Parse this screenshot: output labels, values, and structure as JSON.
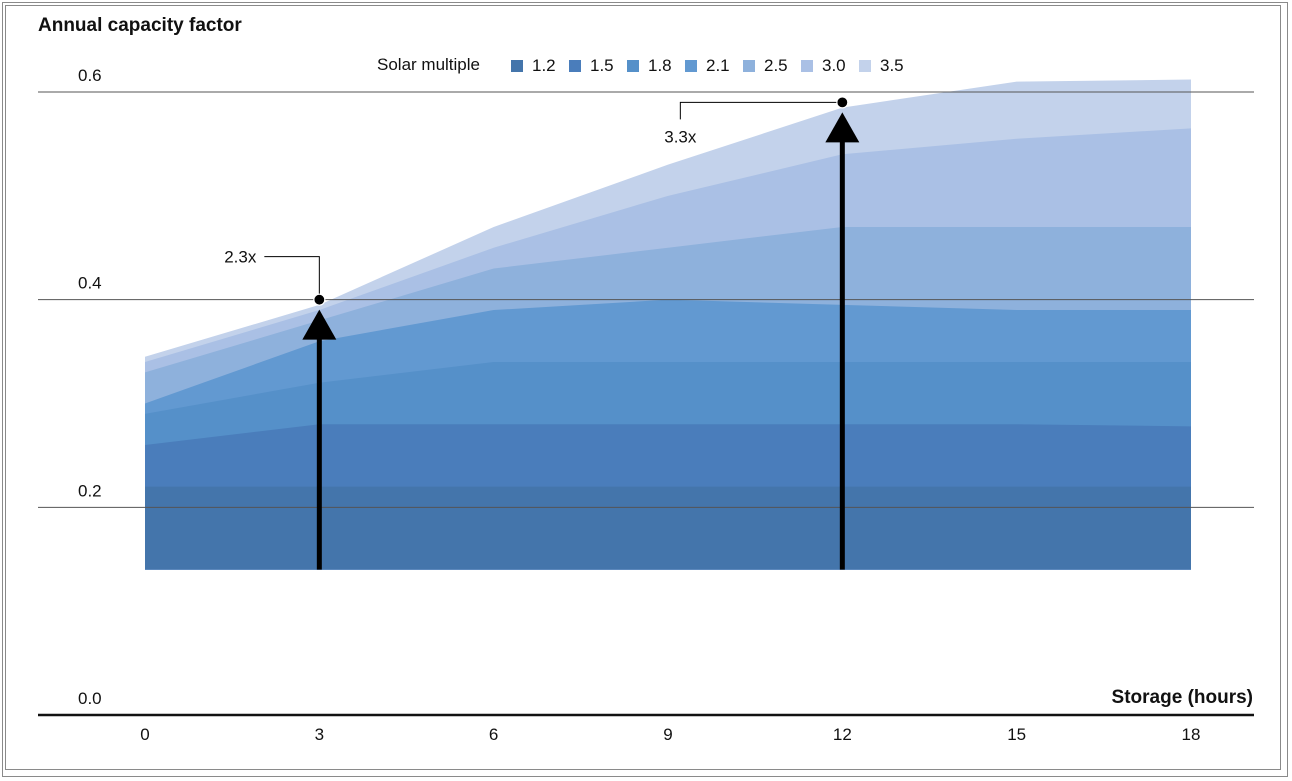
{
  "chart_data": {
    "type": "area",
    "ylabel": "Annual capacity factor",
    "xlabel": "Storage (hours)",
    "legend_title": "Solar multiple",
    "legend_position": "top-center",
    "x": [
      0,
      3,
      6,
      9,
      12,
      15,
      18
    ],
    "x_ticks": [
      "0",
      "3",
      "6",
      "9",
      "12",
      "15",
      "18"
    ],
    "y_ticks": [
      "0.0",
      "0.2",
      "0.4",
      "0.6"
    ],
    "ylim": [
      0,
      0.6
    ],
    "xlim": [
      0,
      18
    ],
    "grid": "horizontal",
    "baseline": 0.14,
    "series": [
      {
        "name": "1.2",
        "color": "#4475ab",
        "values": [
          0.22,
          0.22,
          0.22,
          0.22,
          0.22,
          0.22,
          0.22
        ]
      },
      {
        "name": "1.5",
        "color": "#4a7dbb",
        "values": [
          0.26,
          0.28,
          0.28,
          0.28,
          0.28,
          0.28,
          0.278
        ]
      },
      {
        "name": "1.8",
        "color": "#5590c9",
        "values": [
          0.29,
          0.32,
          0.34,
          0.34,
          0.34,
          0.34,
          0.34
        ]
      },
      {
        "name": "2.1",
        "color": "#6299d1",
        "values": [
          0.3,
          0.36,
          0.39,
          0.4,
          0.395,
          0.39,
          0.39
        ]
      },
      {
        "name": "2.5",
        "color": "#8eb1dc",
        "values": [
          0.33,
          0.38,
          0.43,
          0.45,
          0.47,
          0.47,
          0.47
        ]
      },
      {
        "name": "3.0",
        "color": "#aac0e5",
        "values": [
          0.34,
          0.39,
          0.45,
          0.5,
          0.54,
          0.555,
          0.565
        ]
      },
      {
        "name": "3.5",
        "color": "#c3d2eb",
        "values": [
          0.345,
          0.395,
          0.47,
          0.53,
          0.585,
          0.61,
          0.612
        ]
      }
    ],
    "annotations": [
      {
        "label": "2.3x",
        "x": 3,
        "y": 0.4,
        "arrow_from": 0.14
      },
      {
        "label": "3.3x",
        "x": 12,
        "y": 0.59,
        "arrow_from": 0.14
      }
    ]
  }
}
